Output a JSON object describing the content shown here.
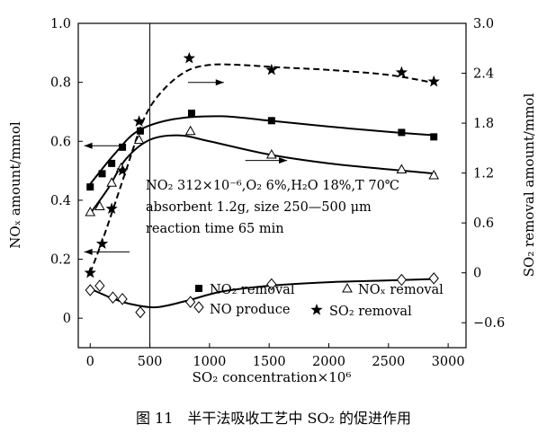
{
  "chart_data": {
    "type": "scatter",
    "caption": "图 11　半干法吸收工艺中 SO₂ 的促进作用",
    "xlabel": "SO₂ concentration×10⁶",
    "ylabel_left": "NOₓ amount/mmol",
    "ylabel_right": "SO₂ removal amount/mmol",
    "xlim": [
      -100,
      3150
    ],
    "ylim_left": [
      -0.1,
      1.0
    ],
    "ylim_right": [
      -0.9,
      3.0
    ],
    "x_ticks": [
      0,
      500,
      1000,
      1500,
      2000,
      2500,
      3000
    ],
    "y_ticks_left": [
      0,
      0.2,
      0.4,
      0.6,
      0.8,
      1.0
    ],
    "y_ticks_right": [
      -0.6,
      0,
      0.6,
      1.2,
      1.8,
      2.4,
      3.0
    ],
    "y_tick_labels_left": [
      "0",
      "0.2",
      "0.4",
      "0.6",
      "0.8",
      "1.0"
    ],
    "y_tick_labels_right": [
      "−0.6",
      "0",
      "0.6",
      "1.2",
      "1.8",
      "2.4",
      "3.0"
    ],
    "vertical_line_x": 500,
    "annotation_lines": [
      "NO₂ 312×10⁻⁶,O₂ 6%,H₂O 18%,T 70℃",
      "absorbent 1.2g, size 250—500 μm",
      "reaction time 65 min"
    ],
    "legend": {
      "no2": "NO₂ removal",
      "nox": "NOₓ  removal",
      "no": "NO produce",
      "so2": "SO₂ removal"
    },
    "series": [
      {
        "key": "no2",
        "name": "NO₂ removal",
        "axis": "left",
        "marker": "filled-square",
        "x": [
          0,
          100,
          180,
          270,
          420,
          850,
          1520,
          2610,
          2880
        ],
        "y": [
          0.445,
          0.49,
          0.525,
          0.58,
          0.635,
          0.695,
          0.67,
          0.63,
          0.615
        ]
      },
      {
        "key": "nox",
        "name": "NOₓ removal",
        "axis": "left",
        "marker": "open-triangle",
        "x": [
          0,
          80,
          180,
          260,
          410,
          840,
          1520,
          2610,
          2880
        ],
        "y": [
          0.36,
          0.38,
          0.46,
          0.51,
          0.605,
          0.635,
          0.555,
          0.505,
          0.485
        ]
      },
      {
        "key": "no",
        "name": "NO produce",
        "axis": "left",
        "marker": "open-diamond",
        "x": [
          0,
          80,
          190,
          270,
          420,
          840,
          1520,
          2610,
          2880
        ],
        "y": [
          0.095,
          0.11,
          0.07,
          0.065,
          0.02,
          0.055,
          0.115,
          0.13,
          0.135
        ]
      },
      {
        "key": "so2",
        "name": "SO₂ removal",
        "axis": "right",
        "marker": "filled-star",
        "x": [
          0,
          100,
          180,
          270,
          410,
          830,
          1520,
          2610,
          2880
        ],
        "y": [
          0.0,
          0.35,
          0.77,
          1.23,
          1.82,
          2.58,
          2.44,
          2.41,
          2.3
        ]
      }
    ],
    "fit_curves": [
      {
        "key": "no2",
        "style": "solid",
        "x": [
          0,
          200,
          400,
          700,
          1100,
          1500,
          2000,
          2500,
          2900
        ],
        "y": [
          0.455,
          0.555,
          0.635,
          0.675,
          0.685,
          0.67,
          0.65,
          0.632,
          0.62
        ]
      },
      {
        "key": "nox",
        "style": "solid",
        "x": [
          0,
          150,
          300,
          500,
          750,
          1000,
          1500,
          2000,
          2500,
          2900
        ],
        "y": [
          0.355,
          0.44,
          0.54,
          0.605,
          0.62,
          0.6,
          0.555,
          0.525,
          0.505,
          0.49
        ]
      },
      {
        "key": "no",
        "style": "solid",
        "x": [
          0,
          100,
          200,
          350,
          550,
          800,
          1100,
          1500,
          2000,
          2500,
          2900
        ],
        "y": [
          0.1,
          0.082,
          0.065,
          0.047,
          0.037,
          0.058,
          0.09,
          0.11,
          0.122,
          0.128,
          0.133
        ]
      },
      {
        "key": "so2",
        "style": "dashed",
        "x": [
          0,
          100,
          200,
          300,
          450,
          600,
          800,
          1000,
          1250,
          1600,
          2000,
          2500,
          2900
        ],
        "y": [
          0.0,
          0.38,
          0.8,
          1.23,
          1.85,
          2.18,
          2.42,
          2.5,
          2.5,
          2.47,
          2.44,
          2.38,
          2.28
        ]
      }
    ],
    "axis_arrows": [
      {
        "axis": "left",
        "x_from": 270,
        "x_to": -50,
        "y": 0.585
      },
      {
        "axis": "left",
        "x_from": 1300,
        "x_to": 1650,
        "y": 0.535
      },
      {
        "axis": "left",
        "x_from": 330,
        "x_to": -50,
        "y": 0.225
      },
      {
        "axis": "right",
        "x_from": 820,
        "x_to": 1120,
        "y": 2.29
      }
    ]
  }
}
